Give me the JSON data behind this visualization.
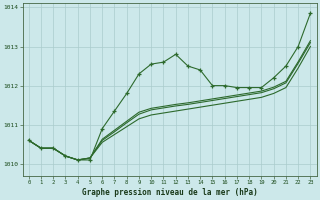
{
  "bg_color": "#cce8ea",
  "grid_color": "#aacccc",
  "line_color": "#2d6a2d",
  "xlabel": "Graphe pression niveau de la mer (hPa)",
  "ylim": [
    1009.7,
    1014.1
  ],
  "xlim": [
    -0.5,
    23.5
  ],
  "yticks": [
    1010,
    1011,
    1012,
    1013,
    1014
  ],
  "xticks": [
    0,
    1,
    2,
    3,
    4,
    5,
    6,
    7,
    8,
    9,
    10,
    11,
    12,
    13,
    14,
    15,
    16,
    17,
    18,
    19,
    20,
    21,
    22,
    23
  ],
  "series_main": [
    1010.6,
    1010.4,
    1010.4,
    1010.2,
    1010.1,
    1010.1,
    1010.9,
    1011.35,
    1011.8,
    1012.3,
    1012.55,
    1012.6,
    1012.8,
    1012.5,
    1012.4,
    1012.0,
    1012.0,
    1011.95,
    1011.95,
    1011.95,
    1012.2,
    1012.5,
    1013.0,
    1013.85
  ],
  "series_straight1": [
    1010.6,
    1010.4,
    1010.4,
    1010.2,
    1010.1,
    1010.15,
    1010.55,
    1010.75,
    1010.95,
    1011.15,
    1011.25,
    1011.3,
    1011.35,
    1011.4,
    1011.45,
    1011.5,
    1011.55,
    1011.6,
    1011.65,
    1011.7,
    1011.8,
    1011.95,
    1012.45,
    1013.0
  ],
  "series_straight2": [
    1010.6,
    1010.4,
    1010.4,
    1010.2,
    1010.1,
    1010.15,
    1010.6,
    1010.82,
    1011.05,
    1011.27,
    1011.38,
    1011.43,
    1011.48,
    1011.52,
    1011.57,
    1011.62,
    1011.67,
    1011.72,
    1011.77,
    1011.82,
    1011.92,
    1012.07,
    1012.57,
    1013.1
  ],
  "series_straight3": [
    1010.6,
    1010.4,
    1010.4,
    1010.2,
    1010.1,
    1010.15,
    1010.63,
    1010.86,
    1011.09,
    1011.32,
    1011.42,
    1011.47,
    1011.52,
    1011.56,
    1011.61,
    1011.66,
    1011.71,
    1011.76,
    1011.81,
    1011.86,
    1011.96,
    1012.11,
    1012.61,
    1013.15
  ]
}
